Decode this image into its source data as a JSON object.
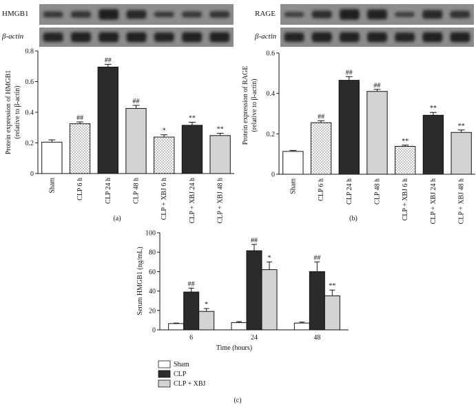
{
  "chart_data": [
    {
      "id": "a",
      "type": "bar",
      "panel_label": "(a)",
      "blot_labels": [
        "HMGB1",
        "β-actin"
      ],
      "ylabel": "Protein expression of HMGB1 (relative to β-actin)",
      "ylabel_lines": [
        "Protein expression of HMGB1",
        "(relative to β-actin)"
      ],
      "ylim": [
        0,
        0.8
      ],
      "yticks": [
        "0",
        "0.2",
        "0.4",
        "0.6",
        "0.8"
      ],
      "ytick_values": [
        0,
        0.2,
        0.4,
        0.6,
        0.8
      ],
      "categories": [
        "Sham",
        "CLP 6 h",
        "CLP 24 h",
        "CLP 48 h",
        "CLP + XBJ 6 h",
        "CLP + XBJ 24 h",
        "CLP + XBJ 48 h"
      ],
      "values": [
        0.205,
        0.325,
        0.695,
        0.425,
        0.238,
        0.315,
        0.248
      ],
      "errors": [
        0.015,
        0.012,
        0.018,
        0.02,
        0.015,
        0.02,
        0.015
      ],
      "annotations": [
        "",
        "##",
        "##",
        "##",
        "*",
        "**",
        "**"
      ],
      "fills": [
        "white",
        "dots",
        "dark",
        "light",
        "dots",
        "dark",
        "light"
      ]
    },
    {
      "id": "b",
      "type": "bar",
      "panel_label": "(b)",
      "blot_labels": [
        "RAGE",
        "β-actin"
      ],
      "ylabel": "Protein expression of RAGE (relative to β-actin)",
      "ylabel_lines": [
        "Protein expression of RAGE",
        "(relative to β-actin)"
      ],
      "ylim": [
        0,
        0.6
      ],
      "yticks": [
        "0",
        "0.2",
        "0.4",
        "0.6"
      ],
      "ytick_values": [
        0,
        0.2,
        0.4,
        0.6
      ],
      "categories": [
        "Sham",
        "CLP 6 h",
        "CLP 24 h",
        "CLP 48 h",
        "CLP + XBJ 6 h",
        "CLP + XBJ 24 h",
        "CLP + XBJ 48 h"
      ],
      "values": [
        0.113,
        0.255,
        0.465,
        0.41,
        0.138,
        0.292,
        0.207
      ],
      "errors": [
        0.005,
        0.01,
        0.018,
        0.01,
        0.006,
        0.014,
        0.012
      ],
      "annotations": [
        "",
        "##",
        "##",
        "##",
        "**",
        "**",
        "**"
      ],
      "fills": [
        "white",
        "dots",
        "dark",
        "light",
        "dots",
        "dark",
        "light"
      ]
    },
    {
      "id": "c",
      "type": "bar",
      "panel_label": "(c)",
      "ylabel": "Serum HMGB1 (ng/mL)",
      "xlabel": "Time (hours)",
      "ylim": [
        0,
        100
      ],
      "yticks": [
        "0",
        "20",
        "40",
        "60",
        "80",
        "100"
      ],
      "ytick_values": [
        0,
        20,
        40,
        60,
        80,
        100
      ],
      "categories": [
        "6",
        "24",
        "48"
      ],
      "series": [
        {
          "name": "Sham",
          "fill": "white",
          "values": [
            6.5,
            7.5,
            7
          ],
          "errors": [
            0.5,
            1,
            1
          ],
          "annotations": [
            "",
            "",
            ""
          ]
        },
        {
          "name": "CLP",
          "fill": "dark",
          "values": [
            39,
            81.5,
            60
          ],
          "errors": [
            4,
            6.5,
            10
          ],
          "annotations": [
            "##",
            "##",
            "##"
          ]
        },
        {
          "name": "CLP + XBJ",
          "fill": "light",
          "values": [
            19,
            62,
            35
          ],
          "errors": [
            3,
            8,
            6
          ],
          "annotations": [
            "*",
            "*",
            "**"
          ]
        }
      ],
      "legend": [
        "Sham",
        "CLP",
        "CLP + XBJ"
      ],
      "legend_position": "bottom-left"
    }
  ],
  "colors": {
    "dark": "#2b2b2b",
    "light": "#d3d3d3",
    "white": "#ffffff",
    "axis": "#111111",
    "blot_bg": "#8c8c8c",
    "band": "#1e1e1e"
  }
}
